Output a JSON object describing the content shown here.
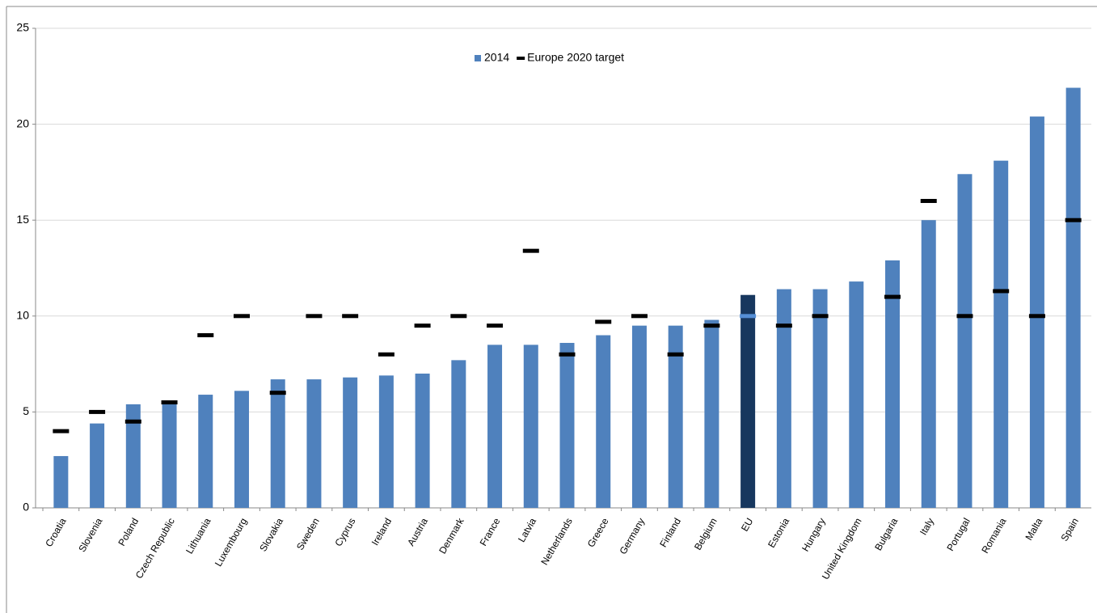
{
  "chart_data": {
    "type": "bar",
    "categories": [
      "Croatia",
      "Slovenia",
      "Poland",
      "Czech Republic",
      "Lithuania",
      "Luxembourg",
      "Slovakia",
      "Sweden",
      "Cyprus",
      "Ireland",
      "Austria",
      "Denmark",
      "France",
      "Latvia",
      "Netherlands",
      "Greece",
      "Germany",
      "Finland",
      "Belgium",
      "EU",
      "Estonia",
      "Hungary",
      "United Kingdom",
      "Bulgaria",
      "Italy",
      "Portugal",
      "Romania",
      "Malta",
      "Spain"
    ],
    "series": [
      {
        "name": "2014",
        "mark": "bar",
        "color": "#4f81bd",
        "highlight_color": "#17375e",
        "values": [
          2.7,
          4.4,
          5.4,
          5.5,
          5.9,
          6.1,
          6.7,
          6.7,
          6.8,
          6.9,
          7.0,
          7.7,
          8.5,
          8.5,
          8.6,
          9.0,
          9.5,
          9.5,
          9.8,
          11.1,
          11.4,
          11.4,
          11.8,
          12.9,
          15.0,
          17.4,
          18.1,
          20.4,
          21.9
        ]
      },
      {
        "name": "Europe 2020 target",
        "mark": "dash",
        "color": "#000000",
        "highlight_color": "#558ed5",
        "values": [
          4,
          5,
          4.5,
          5.5,
          9,
          10,
          6,
          10,
          10,
          8,
          9.5,
          10,
          9.5,
          13.4,
          8,
          9.7,
          10,
          8,
          9.5,
          10,
          9.5,
          10,
          null,
          11,
          16,
          10,
          11.3,
          10,
          15
        ]
      }
    ],
    "highlight_category": "EU",
    "ylim": [
      0,
      25
    ],
    "yticks": [
      0,
      5,
      10,
      15,
      20,
      25
    ],
    "grid": true,
    "legend": "top"
  }
}
